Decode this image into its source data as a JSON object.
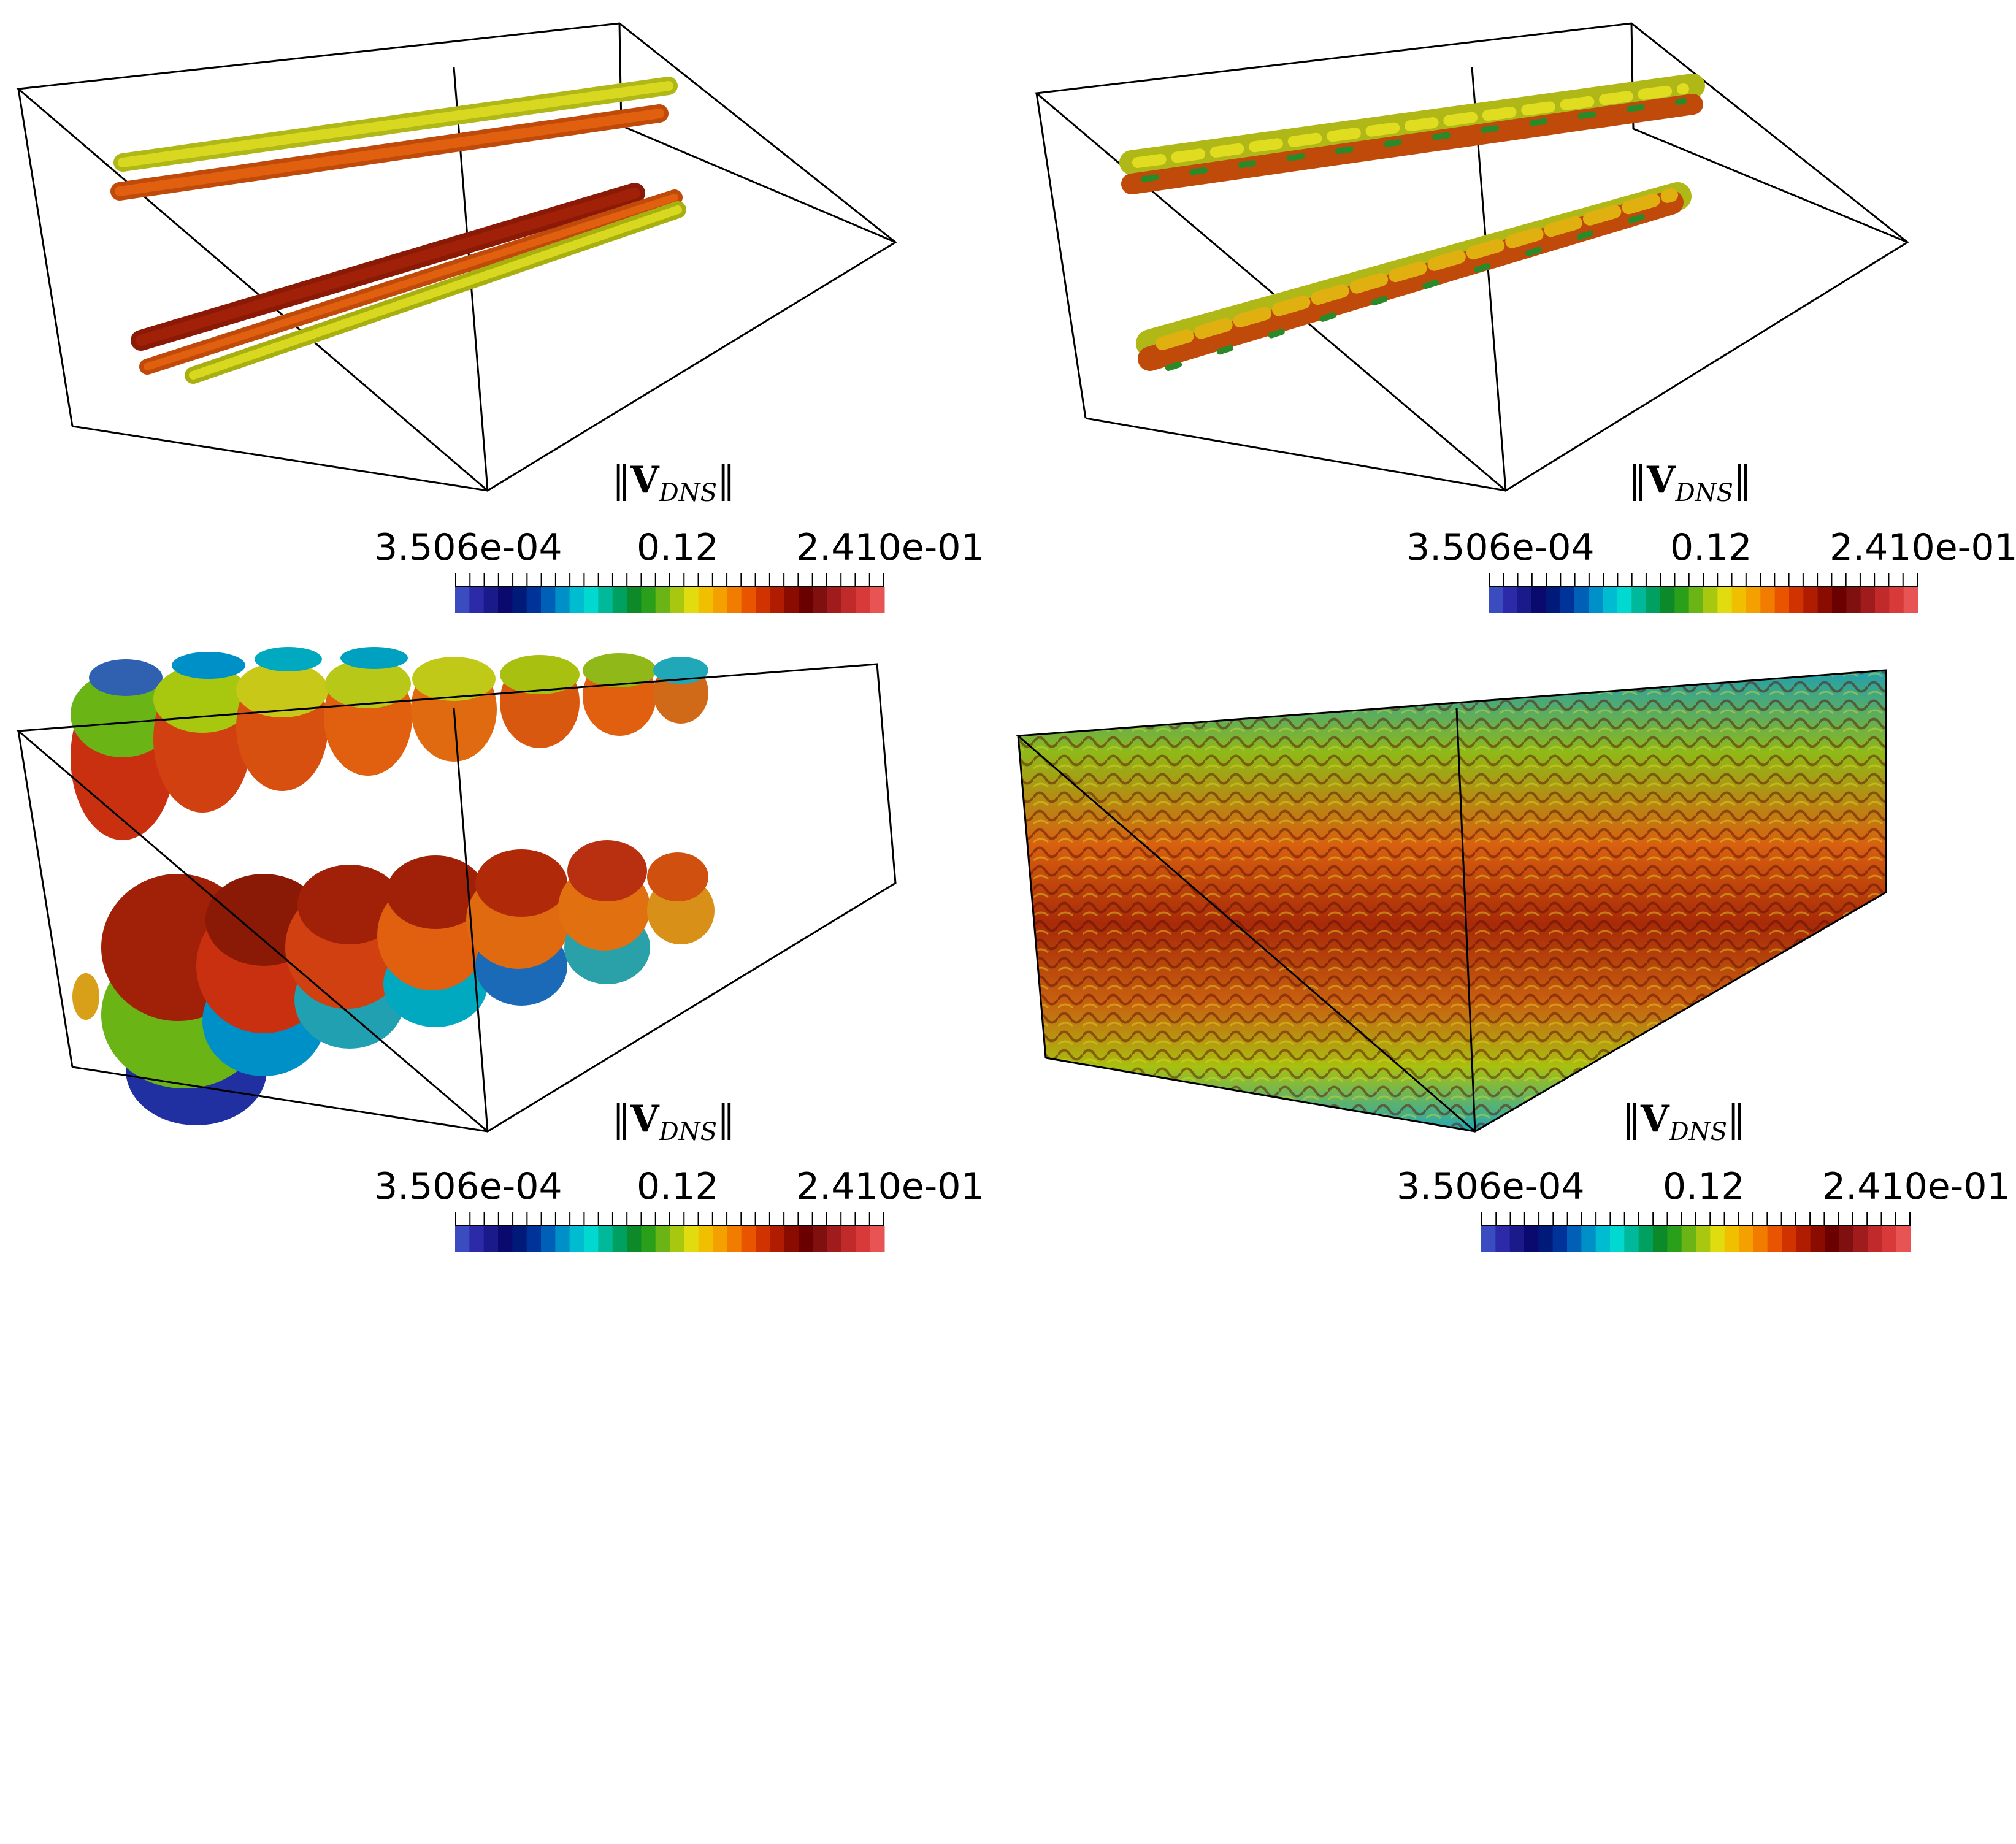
{
  "colorbar": {
    "title_main": "V",
    "title_sub": "DNS",
    "min_label": "3.506e-04",
    "mid_label": "0.12",
    "max_label": "2.410e-01",
    "colors": [
      "#3b4cc0",
      "#2c2aa8",
      "#1a1a8a",
      "#0a0a6e",
      "#001a7a",
      "#00339a",
      "#0060b8",
      "#0090c8",
      "#00bcd0",
      "#00d8d0",
      "#00b89a",
      "#00a060",
      "#0c8a2a",
      "#2aa01a",
      "#6ab416",
      "#a8c810",
      "#e0dc10",
      "#f0c000",
      "#f4a000",
      "#f27c00",
      "#e85400",
      "#d03200",
      "#b01c00",
      "#8a0c00",
      "#6a0000",
      "#801010",
      "#a01c1c",
      "#c02a2a",
      "#d83a3a",
      "#e85454"
    ],
    "tick_count": 31
  },
  "panels": [
    {
      "id": "top-left",
      "scene": "two tube pairs"
    },
    {
      "id": "top-right",
      "scene": "twisted tubes"
    },
    {
      "id": "bottom-left",
      "scene": "ring vortices"
    },
    {
      "id": "bottom-right",
      "scene": "turbulent box"
    }
  ],
  "surface_colors": {
    "yellow": "#d8d820",
    "olive": "#b0b818",
    "orange": "#e06010",
    "dark_red": "#a02008",
    "red": "#c83010",
    "green": "#4a9a20",
    "cyan": "#20a8b8",
    "blue": "#3040b0",
    "navy": "#1a2a8a"
  }
}
